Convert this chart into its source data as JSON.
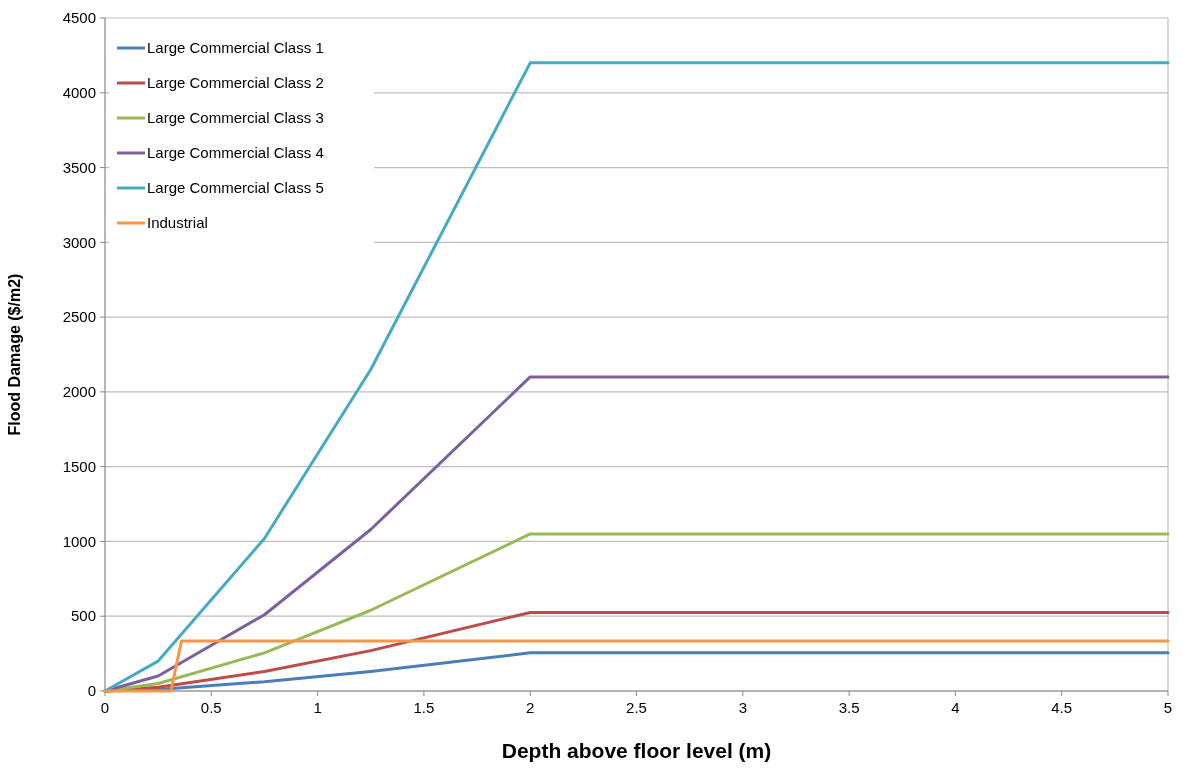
{
  "chart_data": {
    "type": "line",
    "xlabel": "Depth above floor level (m)",
    "ylabel": "Flood Damage ($/m2)",
    "xlim": [
      0,
      5
    ],
    "xticks": [
      0,
      {
        "value": 0.5,
        "label": "0.5"
      },
      1,
      {
        "value": 1.5,
        "label": "1.5"
      },
      2,
      {
        "value": 2.5,
        "label": "2.5"
      },
      3,
      {
        "value": 3.5,
        "label": "3.5"
      },
      4,
      {
        "value": 4.5,
        "label": "4.5"
      },
      5
    ],
    "ylim": [
      0,
      4500
    ],
    "yticks": [
      0,
      500,
      1000,
      1500,
      2000,
      2500,
      3000,
      3500,
      4000,
      4500
    ],
    "grid": "y",
    "legend": "top left",
    "marker": "none",
    "line_style": "solid",
    "series": [
      {
        "name": "Large Commercial Class 1",
        "color": "#4a7ebb",
        "x": [
          0,
          0.25,
          0.75,
          1.25,
          2,
          5
        ],
        "values": [
          0,
          10,
          62,
          130,
          255,
          255
        ]
      },
      {
        "name": "Large Commercial Class 2",
        "color": "#be4b48",
        "x": [
          0,
          0.25,
          0.75,
          1.25,
          2,
          5
        ],
        "values": [
          0,
          25,
          130,
          270,
          525,
          525
        ]
      },
      {
        "name": "Large Commercial Class 3",
        "color": "#98b954",
        "x": [
          0,
          0.25,
          0.75,
          1.25,
          2,
          5
        ],
        "values": [
          0,
          50,
          255,
          540,
          1050,
          1050
        ]
      },
      {
        "name": "Large Commercial Class 4",
        "color": "#7d60a0",
        "x": [
          0,
          0.25,
          0.75,
          1.25,
          2,
          5
        ],
        "values": [
          0,
          100,
          510,
          1080,
          2100,
          2100
        ]
      },
      {
        "name": "Large Commercial Class 5",
        "color": "#46aac5",
        "x": [
          0,
          0.25,
          0.75,
          1.25,
          2,
          5
        ],
        "values": [
          0,
          200,
          1020,
          2150,
          4200,
          4200
        ]
      },
      {
        "name": "Industrial",
        "color": "#f79646",
        "x": [
          0,
          0.31,
          0.36,
          5
        ],
        "values": [
          0,
          0,
          335,
          335
        ]
      }
    ]
  }
}
